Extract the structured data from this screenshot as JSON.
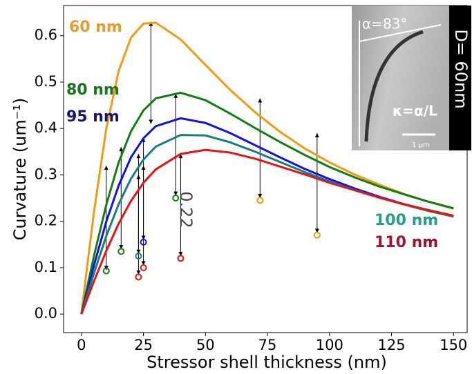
{
  "chart_data": {
    "type": "line",
    "xlabel": "Stressor shell thickness (nm)",
    "ylabel": "Curvature (um⁻¹)",
    "x": [
      0,
      2,
      5,
      10,
      15,
      20,
      25,
      30,
      40,
      50,
      60,
      70,
      80,
      90,
      100,
      110,
      120,
      130,
      140,
      150
    ],
    "series": [
      {
        "name": "60 nm",
        "color": "#f59a0c",
        "label_color": "#e89c2a",
        "values": [
          0,
          0.0895,
          0.218,
          0.399,
          0.524,
          0.596,
          0.626,
          0.628,
          0.592,
          0.537,
          0.483,
          0.435,
          0.393,
          0.357,
          0.327,
          0.301,
          0.279,
          0.259,
          0.242,
          0.227
        ],
        "points_x": [
          72,
          95
        ],
        "points_y": [
          0.245,
          0.17
        ]
      },
      {
        "name": "80 nm",
        "color": "#0f8010",
        "label_color": "#13781a",
        "values": [
          0,
          0.05,
          0.124,
          0.235,
          0.327,
          0.394,
          0.439,
          0.465,
          0.477,
          0.461,
          0.432,
          0.401,
          0.371,
          0.343,
          0.317,
          0.295,
          0.275,
          0.258,
          0.242,
          0.228
        ],
        "points_x": [
          10,
          16,
          38
        ],
        "points_y": [
          0.093,
          0.135,
          0.25
        ]
      },
      {
        "name": "95 nm",
        "color": "#1010f0",
        "label_color": "#16166a",
        "values": [
          0,
          0.042,
          0.104,
          0.199,
          0.277,
          0.338,
          0.379,
          0.405,
          0.422,
          0.412,
          0.39,
          0.364,
          0.338,
          0.313,
          0.291,
          0.271,
          0.253,
          0.237,
          0.223,
          0.21
        ],
        "points_x": [
          25
        ],
        "points_y": [
          0.155
        ]
      },
      {
        "name": "100 nm",
        "color": "#168080",
        "label_color": "#22a08a",
        "values": [
          0,
          0.035,
          0.087,
          0.168,
          0.237,
          0.292,
          0.333,
          0.361,
          0.386,
          0.385,
          0.37,
          0.35,
          0.328,
          0.306,
          0.286,
          0.268,
          0.251,
          0.236,
          0.222,
          0.21
        ],
        "points_x": [
          23
        ],
        "points_y": [
          0.125
        ]
      },
      {
        "name": "110 nm",
        "color": "#ee1010",
        "label_color": "#a01430",
        "values": [
          0,
          0.028,
          0.07,
          0.136,
          0.195,
          0.244,
          0.283,
          0.312,
          0.345,
          0.354,
          0.348,
          0.335,
          0.318,
          0.301,
          0.283,
          0.267,
          0.251,
          0.237,
          0.224,
          0.212
        ],
        "points_x": [
          23,
          25,
          40
        ],
        "points_y": [
          0.08,
          0.1,
          0.12
        ]
      }
    ],
    "arrows": [
      {
        "x": 10,
        "y1": 0.095,
        "y2": 0.32
      },
      {
        "x": 16,
        "y1": 0.14,
        "y2": 0.36
      },
      {
        "x": 23,
        "y1": 0.085,
        "y2": 0.3
      },
      {
        "x": 23,
        "y1": 0.13,
        "y2": 0.345
      },
      {
        "x": 25,
        "y1": 0.105,
        "y2": 0.38
      },
      {
        "x": 25,
        "y1": 0.16,
        "y2": 0.32
      },
      {
        "x": 28,
        "y1": 0.41,
        "y2": 0.63
      },
      {
        "x": 38,
        "y1": 0.255,
        "y2": 0.475
      },
      {
        "x": 40,
        "y1": 0.125,
        "y2": 0.345
      },
      {
        "x": 72,
        "y1": 0.25,
        "y2": 0.465
      },
      {
        "x": 95,
        "y1": 0.175,
        "y2": 0.39
      }
    ],
    "annotation": "0.22",
    "inset": {
      "angle": "α=83°",
      "formula": "κ=α/L",
      "scale": "1 μm",
      "diameter": "D= 60nm"
    },
    "xlim": [
      -7.2,
      155.5
    ],
    "ylim": [
      -0.04,
      0.665
    ],
    "xticks": [
      0,
      25,
      50,
      75,
      100,
      125,
      150
    ],
    "yticks": [
      {
        "value": 0,
        "label": "0.0"
      },
      0.1,
      0.2,
      0.3,
      0.4,
      0.5,
      0.6
    ]
  }
}
